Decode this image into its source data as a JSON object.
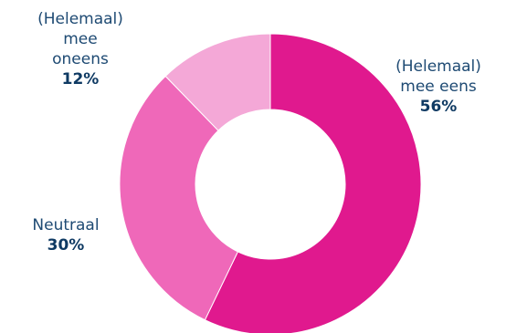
{
  "chart_data": {
    "type": "pie",
    "donut": true,
    "title": "",
    "slices": [
      {
        "label_lines": [
          "(Helemaal)",
          "mee eens"
        ],
        "value": 56,
        "value_label": "56%",
        "color": "#e0198e"
      },
      {
        "label_lines": [
          "Neutraal"
        ],
        "value": 30,
        "value_label": "30%",
        "color": "#ef68b9"
      },
      {
        "label_lines": [
          "(Helemaal)",
          "mee",
          "oneens"
        ],
        "value": 12,
        "value_label": "12%",
        "color": "#f4a8d7"
      }
    ],
    "start": "top",
    "direction": "clockwise",
    "legend": "none"
  }
}
